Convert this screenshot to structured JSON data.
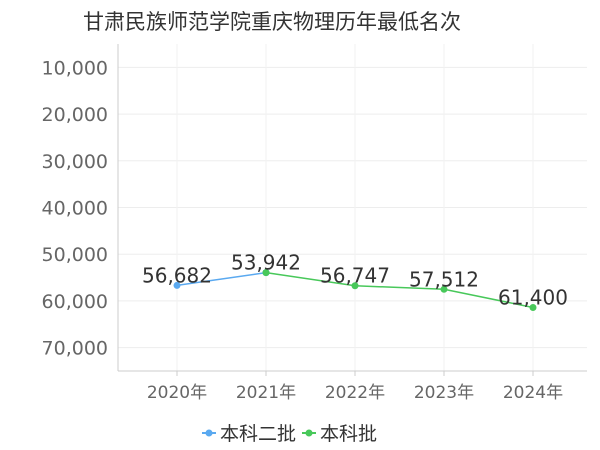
{
  "chart_data": {
    "type": "line",
    "title": "甘肃民族师范学院重庆物理历年最低名次",
    "xlabel": "",
    "ylabel": "",
    "categories": [
      "2020年",
      "2021年",
      "2022年",
      "2023年",
      "2024年"
    ],
    "y_inverted": true,
    "ylim": [
      5000,
      75000
    ],
    "yticks": [
      10000,
      20000,
      30000,
      40000,
      50000,
      60000,
      70000
    ],
    "ytick_labels": [
      "10,000",
      "20,000",
      "30,000",
      "40,000",
      "50,000",
      "60,000",
      "70,000"
    ],
    "grid": true,
    "legend_position": "bottom-center",
    "series": [
      {
        "name": "本科二批",
        "color": "#5aa9f0",
        "values": [
          56682,
          53942,
          null,
          null,
          null
        ],
        "labels": [
          "56,682",
          "",
          "",
          "",
          ""
        ]
      },
      {
        "name": "本科批",
        "color": "#48c85a",
        "values": [
          null,
          53942,
          56747,
          57512,
          61400
        ],
        "labels": [
          "",
          "53,942",
          "56,747",
          "57,512",
          "61,400"
        ]
      }
    ]
  }
}
